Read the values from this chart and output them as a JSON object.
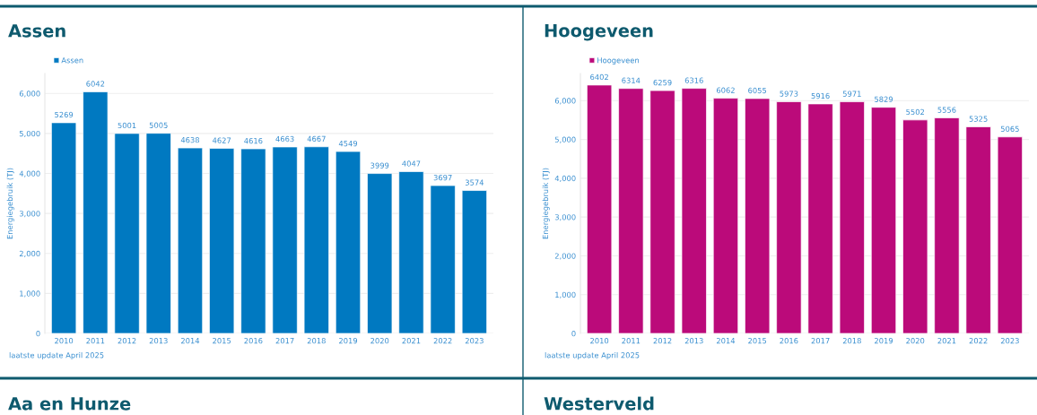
{
  "chart_data": [
    {
      "type": "bar",
      "title": "Assen",
      "ylabel": "Energiegebruik (TJ)",
      "categories": [
        "2010",
        "2011",
        "2012",
        "2013",
        "2014",
        "2015",
        "2016",
        "2017",
        "2018",
        "2019",
        "2020",
        "2021",
        "2022",
        "2023"
      ],
      "series": [
        {
          "name": "Assen",
          "color": "#0079c1",
          "values": [
            5269,
            6042,
            5001,
            5005,
            4638,
            4627,
            4616,
            4663,
            4667,
            4549,
            3999,
            4047,
            3697,
            3574
          ]
        }
      ],
      "ylim": [
        0,
        6500
      ],
      "yticks": [
        0,
        {
          "value": 1000,
          "label": "1,000"
        },
        {
          "value": 2000,
          "label": "2,000"
        },
        {
          "value": 3000,
          "label": "3,000"
        },
        {
          "value": 4000,
          "label": "4,000"
        },
        {
          "value": 5000,
          "label": "5,000"
        },
        {
          "value": 6000,
          "label": "6,000"
        }
      ],
      "grid": "y",
      "legend": "top left",
      "data_labels": true,
      "annotations": [
        "laatste update April 2025"
      ]
    },
    {
      "type": "bar",
      "title": "Hoogeveen",
      "ylabel": "Energiegebruik (TJ)",
      "categories": [
        "2010",
        "2011",
        "2012",
        "2013",
        "2014",
        "2015",
        "2016",
        "2017",
        "2018",
        "2019",
        "2020",
        "2021",
        "2022",
        "2023"
      ],
      "series": [
        {
          "name": "Hoogeveen",
          "color": "#bb0a7a",
          "values": [
            6402,
            6314,
            6259,
            6316,
            6062,
            6055,
            5973,
            5916,
            5971,
            5829,
            5502,
            5556,
            5325,
            5065
          ]
        }
      ],
      "ylim": [
        0,
        6700
      ],
      "yticks": [
        0,
        {
          "value": 1000,
          "label": "1,000"
        },
        {
          "value": 2000,
          "label": "2,000"
        },
        {
          "value": 3000,
          "label": "3,000"
        },
        {
          "value": 4000,
          "label": "4,000"
        },
        {
          "value": 5000,
          "label": "5,000"
        },
        {
          "value": 6000,
          "label": "6,000"
        }
      ],
      "grid": "y",
      "legend": "top left",
      "data_labels": true,
      "annotations": [
        "laatste update April 2025"
      ]
    },
    {
      "type": "other",
      "title": "Aa en Hunze"
    },
    {
      "type": "other",
      "title": "Westerveld"
    }
  ]
}
